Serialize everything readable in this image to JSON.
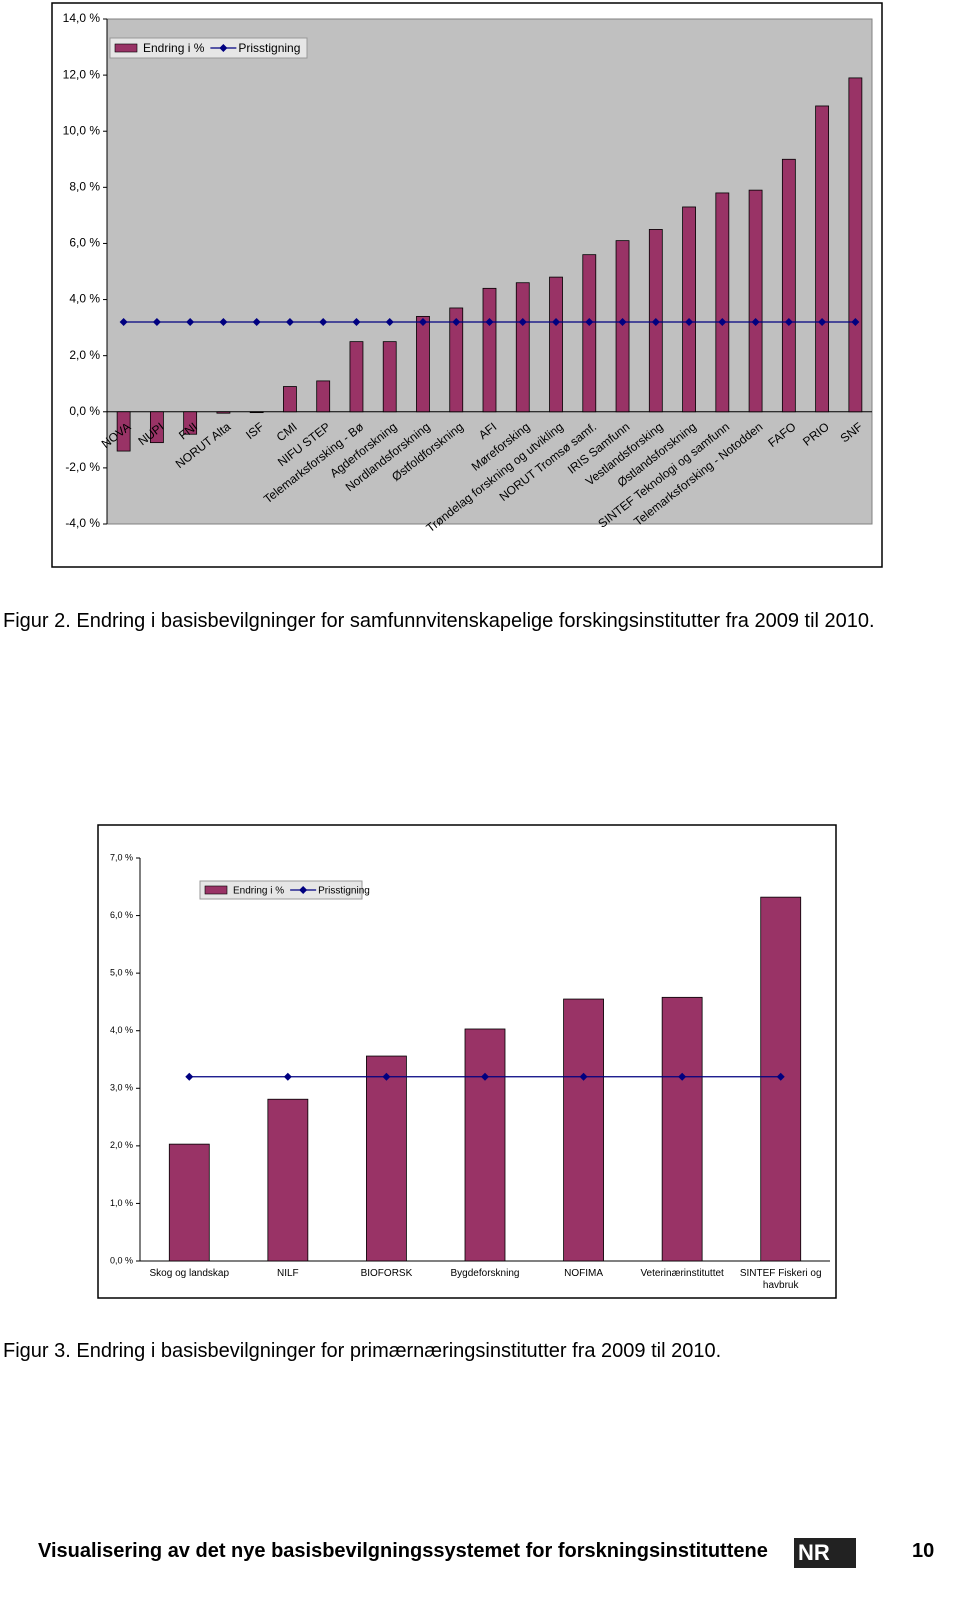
{
  "chart_data": [
    {
      "type": "bar",
      "categories": [
        "NOVA",
        "NUPI",
        "FNI",
        "NORUT Alta",
        "ISF",
        "CMI",
        "NIFU STEP",
        "Telemarksforsking - Bø",
        "Agderforskning",
        "Nordlandsforskning",
        "Østfoldforskning",
        "AFI",
        "Møreforsking",
        "Trøndelag forskning og utvikling",
        "NORUT Tromsø samf.",
        "IRIS Samfunn",
        "Vestlandsforsking",
        "Østlandsforskning",
        "SINTEF Teknologi og samfunn",
        "Telemarksforsking - Notodden",
        "FAFO",
        "PRIO",
        "SNF"
      ],
      "series": [
        {
          "name": "Endring i %",
          "type": "bar",
          "color": "#993366",
          "values": [
            -1.4,
            -1.1,
            -0.8,
            -0.05,
            -0.03,
            0.9,
            1.1,
            2.5,
            2.5,
            3.4,
            3.7,
            4.4,
            4.6,
            4.8,
            5.6,
            6.1,
            6.5,
            7.3,
            7.8,
            7.9,
            9.0,
            10.9,
            11.9
          ]
        },
        {
          "name": "Prisstigning",
          "type": "line",
          "color": "#000080",
          "values": [
            3.2,
            3.2,
            3.2,
            3.2,
            3.2,
            3.2,
            3.2,
            3.2,
            3.2,
            3.2,
            3.2,
            3.2,
            3.2,
            3.2,
            3.2,
            3.2,
            3.2,
            3.2,
            3.2,
            3.2,
            3.2,
            3.2,
            3.2
          ]
        }
      ],
      "ylim": [
        -4,
        14
      ],
      "yticks": [
        {
          "value": -4,
          "label": "-4,0 %"
        },
        {
          "value": -2,
          "label": "-2,0 %"
        },
        {
          "value": 0,
          "label": "0,0 %"
        },
        {
          "value": 2,
          "label": "2,0 %"
        },
        {
          "value": 4,
          "label": "4,0 %"
        },
        {
          "value": 6,
          "label": "6,0 %"
        },
        {
          "value": 8,
          "label": "8,0 %"
        },
        {
          "value": 10,
          "label": "10,0 %"
        },
        {
          "value": 12,
          "label": "12,0 %"
        },
        {
          "value": 14,
          "label": "14,0 %"
        }
      ],
      "grid": false,
      "plot_background": "#c0c0c0"
    },
    {
      "type": "bar",
      "categories": [
        "Skog og landskap",
        "NILF",
        "BIOFORSK",
        "Bygdeforskning",
        "NOFIMA",
        "Veterinærinstituttet",
        "SINTEF Fiskeri og havbruk"
      ],
      "series": [
        {
          "name": "Endring i %",
          "type": "bar",
          "color": "#993366",
          "values": [
            2.03,
            2.81,
            3.56,
            4.03,
            4.55,
            4.58,
            6.32
          ]
        },
        {
          "name": "Prisstigning",
          "type": "line",
          "color": "#000080",
          "values": [
            3.2,
            3.2,
            3.2,
            3.2,
            3.2,
            3.2,
            3.2
          ]
        }
      ],
      "ylim": [
        0,
        7
      ],
      "yticks": [
        {
          "value": 0,
          "label": "0,0 %"
        },
        {
          "value": 1,
          "label": "1,0 %"
        },
        {
          "value": 2,
          "label": "2,0 %"
        },
        {
          "value": 3,
          "label": "3,0 %"
        },
        {
          "value": 4,
          "label": "4,0 %"
        },
        {
          "value": 5,
          "label": "5,0 %"
        },
        {
          "value": 6,
          "label": "6,0 %"
        },
        {
          "value": 7,
          "label": "7,0 %"
        }
      ],
      "grid": false,
      "plot_background": "#ffffff"
    }
  ],
  "captions": [
    "Figur 2. Endring i basisbevilgninger for samfunnvitenskapelige forskingsinstitutter fra 2009 til 2010.",
    "Figur 3. Endring i basisbevilgninger for primærnæringsinstitutter fra 2009 til 2010."
  ],
  "footer": {
    "title": "Visualisering av det nye basisbevilgningssystemet for forskningsinstituttene",
    "logo": "NR",
    "page": "10"
  }
}
